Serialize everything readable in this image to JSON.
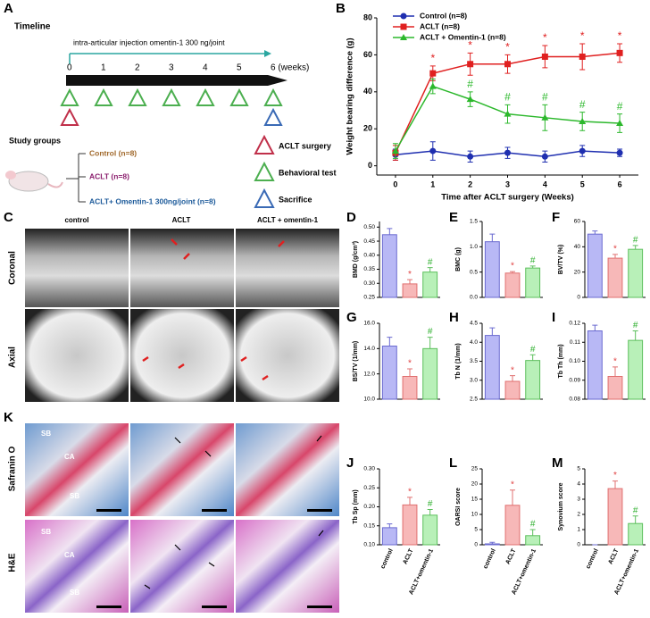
{
  "panels": {
    "a": {
      "letter": "A",
      "timeline_title": "Timeline",
      "injection": "intra-articular injection omentin-1 300 ng/joint",
      "weeks": [
        "0",
        "1",
        "2",
        "3",
        "4",
        "5",
        "6 (weeks)"
      ],
      "groups_title": "Study groups",
      "groups": [
        "Control (n=8)",
        "ACLT (n=8)",
        "ACLT+ Omentin-1 300ng/joint (n=8)"
      ],
      "legend": [
        "ACLT surgery",
        "Behavioral test",
        "Sacrifice"
      ]
    },
    "c": {
      "letter": "C",
      "columns": [
        "control",
        "ACLT",
        "ACLT + omentin-1"
      ],
      "rows": [
        "Coronal",
        "Axial"
      ]
    },
    "k": {
      "letter": "K",
      "rows": [
        "Safranin O",
        "H&E"
      ],
      "labels": [
        "SB",
        "CA",
        "SB",
        "SB",
        "CA",
        "SB"
      ]
    }
  },
  "chart_data": [
    {
      "type": "line",
      "panel": "B",
      "xlabel": "Time after ACLT  surgery (Weeks)",
      "ylabel": "Weight bearing difference (g)",
      "x": [
        0,
        1,
        2,
        3,
        4,
        5,
        6
      ],
      "xlim": [
        -0.5,
        6.5
      ],
      "xticks": [
        0,
        1,
        2,
        3,
        4,
        5,
        6
      ],
      "ylim": [
        -5,
        80
      ],
      "yticks": [
        0,
        20,
        40,
        60,
        80
      ],
      "legend": "top-left",
      "series": [
        {
          "name": "Control (n=8)",
          "color": "#1f2fb0",
          "marker": "circle",
          "values": [
            6,
            8,
            5,
            7,
            5,
            8,
            7
          ],
          "errors": [
            3,
            5,
            3,
            3,
            3,
            3,
            2
          ],
          "annotations": [
            null,
            null,
            null,
            null,
            null,
            null,
            null
          ]
        },
        {
          "name": "ACLT (n=8)",
          "color": "#e02020",
          "marker": "square",
          "values": [
            7,
            50,
            55,
            55,
            59,
            59,
            61
          ],
          "errors": [
            4,
            4,
            6,
            5,
            6,
            7,
            5
          ],
          "annotations": [
            null,
            "*",
            "*",
            "*",
            "*",
            "*",
            "*"
          ]
        },
        {
          "name": "ACLT + Omentin-1 (n=8)",
          "color": "#2cb82c",
          "marker": "triangle",
          "values": [
            8,
            43,
            36,
            28,
            26,
            24,
            23
          ],
          "errors": [
            4,
            4,
            4,
            5,
            7,
            5,
            5
          ],
          "annotations": [
            null,
            null,
            "#",
            "#",
            "#",
            "#",
            "#"
          ]
        }
      ]
    },
    {
      "type": "bar",
      "panel": "D",
      "ylabel": "BMD (g/cm³)",
      "ylim": [
        0.25,
        0.52
      ],
      "yticks": [
        {
          "value": 0.25,
          "label": "0.25"
        },
        {
          "value": 0.3,
          "label": "0.30"
        },
        {
          "value": 0.35,
          "label": "0.35"
        },
        {
          "value": 0.4,
          "label": "0.40"
        },
        {
          "value": 0.45,
          "label": "0.45"
        },
        {
          "value": 0.5,
          "label": "0.50"
        }
      ],
      "values": [
        0.473,
        0.298,
        0.34
      ],
      "errors": [
        0.022,
        0.015,
        0.016
      ],
      "annotations": [
        null,
        "*",
        "#"
      ]
    },
    {
      "type": "bar",
      "panel": "E",
      "ylabel": "BMC (g)",
      "ylim": [
        0,
        1.5
      ],
      "yticks": [
        {
          "value": 0,
          "label": "0.0"
        },
        0.5,
        {
          "value": 1,
          "label": "1.0"
        },
        1.5
      ],
      "values": [
        1.1,
        0.48,
        0.58
      ],
      "errors": [
        0.15,
        0.03,
        0.04
      ],
      "annotations": [
        null,
        "*",
        "#"
      ]
    },
    {
      "type": "bar",
      "panel": "F",
      "ylabel": "BV/TV (%)",
      "ylim": [
        0,
        60
      ],
      "yticks": [
        0,
        20,
        40,
        60
      ],
      "values": [
        50,
        31,
        38
      ],
      "errors": [
        2.5,
        3,
        3
      ],
      "annotations": [
        null,
        "*",
        "#"
      ]
    },
    {
      "type": "bar",
      "panel": "G",
      "ylabel": "BS/TV (1/mm)",
      "ylim": [
        10,
        16
      ],
      "yticks": [
        {
          "value": 10,
          "label": "10.0"
        },
        {
          "value": 12,
          "label": "12.0"
        },
        {
          "value": 14,
          "label": "14.0"
        },
        {
          "value": 16,
          "label": "16.0"
        }
      ],
      "values": [
        14.2,
        11.8,
        14.0
      ],
      "errors": [
        0.7,
        0.6,
        0.9
      ],
      "annotations": [
        null,
        "*",
        "#"
      ]
    },
    {
      "type": "bar",
      "panel": "H",
      "ylabel": "Tb N (1/mm)",
      "ylim": [
        2.5,
        4.5
      ],
      "yticks": [
        2.5,
        {
          "value": 3,
          "label": "3.0"
        },
        3.5,
        {
          "value": 4,
          "label": "4.0"
        },
        4.5
      ],
      "values": [
        4.18,
        2.97,
        3.52
      ],
      "errors": [
        0.2,
        0.15,
        0.15
      ],
      "annotations": [
        null,
        "*",
        "#"
      ]
    },
    {
      "type": "bar",
      "panel": "I",
      "ylabel": "Tb Th (mm)",
      "ylim": [
        0.08,
        0.12
      ],
      "yticks": [
        0.08,
        0.09,
        {
          "value": 0.1,
          "label": "0.10"
        },
        0.11,
        0.12
      ],
      "values": [
        0.116,
        0.092,
        0.111
      ],
      "errors": [
        0.003,
        0.005,
        0.005
      ],
      "annotations": [
        null,
        "*",
        "#"
      ]
    },
    {
      "type": "bar",
      "panel": "J",
      "ylabel": "Tb Sp (mm)",
      "ylim": [
        0.1,
        0.3
      ],
      "yticks": [
        {
          "value": 0.1,
          "label": "0.10"
        },
        0.15,
        {
          "value": 0.2,
          "label": "0.20"
        },
        0.25,
        {
          "value": 0.3,
          "label": "0.30"
        }
      ],
      "categories": [
        "control",
        "ACLT",
        "ACLT+omentin-1"
      ],
      "values": [
        0.145,
        0.205,
        0.178
      ],
      "errors": [
        0.01,
        0.02,
        0.015
      ],
      "annotations": [
        null,
        "*",
        "#"
      ]
    },
    {
      "type": "bar",
      "panel": "L",
      "ylabel": "OARSI score",
      "ylim": [
        0,
        25
      ],
      "yticks": [
        0,
        5,
        10,
        15,
        20,
        25
      ],
      "categories": [
        "control",
        "ACLT",
        "ACLT+omentin-1"
      ],
      "values": [
        0.3,
        13,
        3
      ],
      "errors": [
        0.5,
        5,
        2
      ],
      "annotations": [
        null,
        "*",
        "#"
      ]
    },
    {
      "type": "bar",
      "panel": "M",
      "ylabel": "Synovium score",
      "ylim": [
        0,
        5
      ],
      "yticks": [
        0,
        1,
        2,
        3,
        4,
        5
      ],
      "categories": [
        "control",
        "ACLT",
        "ACLT+omentin-1"
      ],
      "values": [
        0,
        3.7,
        1.4
      ],
      "errors": [
        0,
        0.5,
        0.5
      ],
      "annotations": [
        null,
        "*",
        "#"
      ]
    }
  ],
  "bar_style": {
    "fills": [
      "#b8b8f5",
      "#f7b8b8",
      "#b8f0b8"
    ],
    "strokes": [
      "#6a6ad0",
      "#e07070",
      "#5cbf5c"
    ],
    "annotation_colors": [
      "#2a2ab0",
      "#e04040",
      "#30b030"
    ]
  }
}
